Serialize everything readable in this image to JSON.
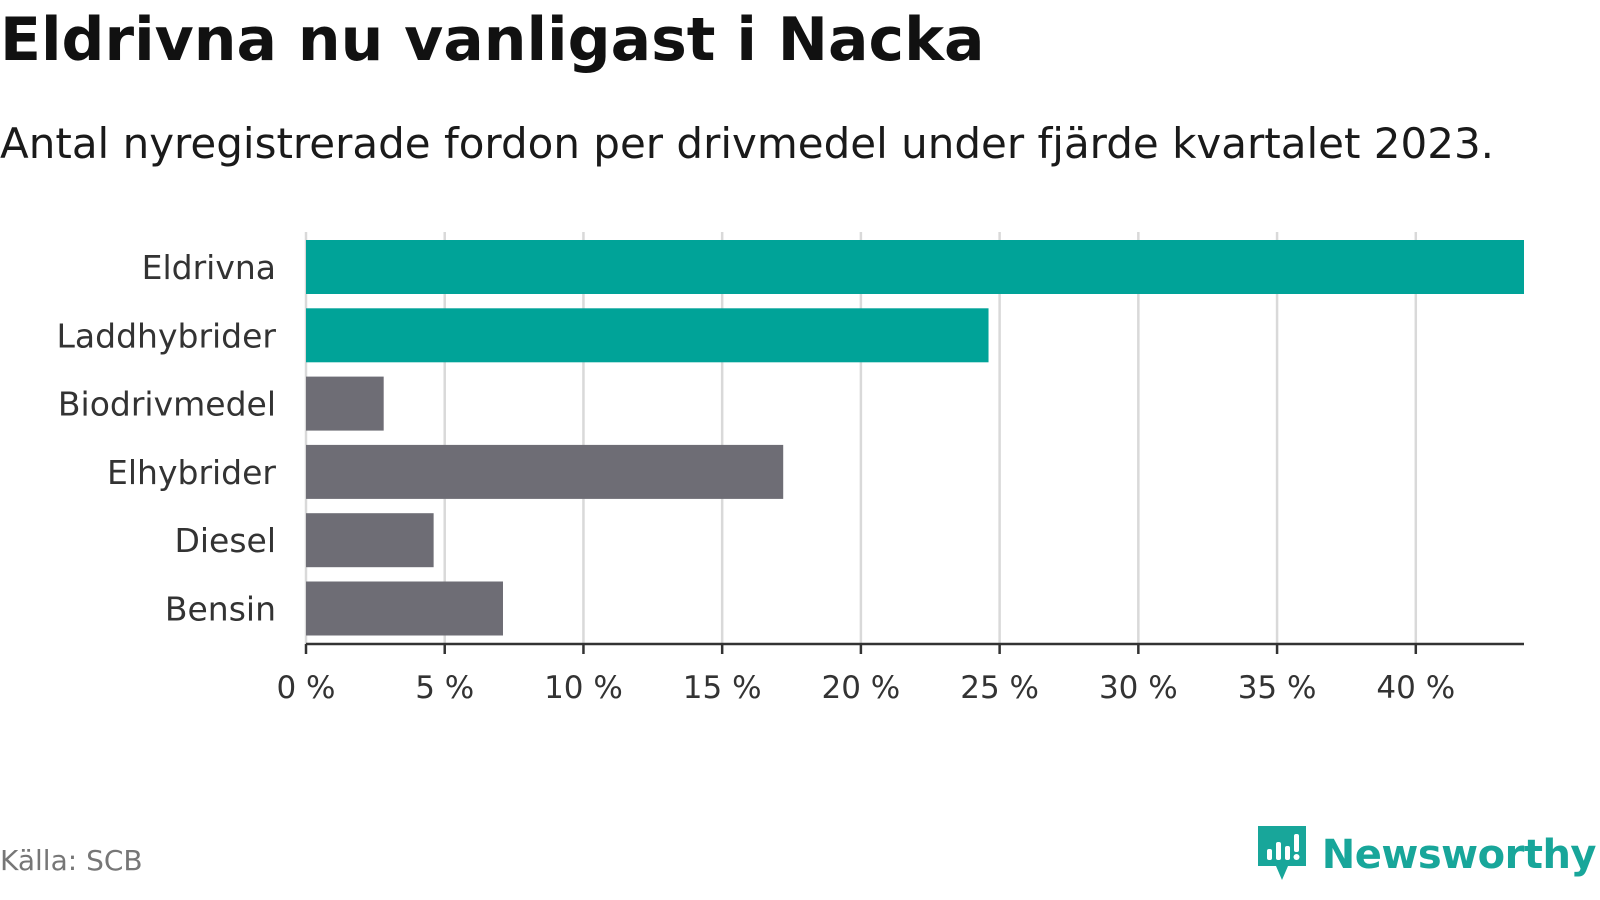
{
  "title": "Eldrivna nu vanligast i Nacka",
  "subtitle": "Antal nyregistrerade fordon per drivmedel under fjärde kvartalet 2023.",
  "source": "Källa: SCB",
  "brand": {
    "name": "Newsworthy",
    "icon": "newsworthy-logo-icon",
    "color": "#18a69a"
  },
  "colors": {
    "highlight": "#00a398",
    "default": "#6e6d75",
    "grid": "#d9d9d9",
    "axis": "#333333"
  },
  "chart_data": {
    "type": "bar",
    "orientation": "horizontal",
    "categories": [
      "Eldrivna",
      "Laddhybrider",
      "Biodrivmedel",
      "Elhybrider",
      "Diesel",
      "Bensin"
    ],
    "values": [
      43.9,
      24.6,
      2.8,
      17.2,
      4.6,
      7.1
    ],
    "highlighted": [
      true,
      true,
      false,
      false,
      false,
      false
    ],
    "x_ticks": [
      0,
      5,
      10,
      15,
      20,
      25,
      30,
      35,
      40
    ],
    "x_tick_labels": [
      "0 %",
      "5 %",
      "10 %",
      "15 %",
      "20 %",
      "25 %",
      "30 %",
      "35 %",
      "40 %"
    ],
    "xlim": [
      0,
      43.9
    ],
    "xlabel": "",
    "ylabel": "",
    "grid": "vertical",
    "legend": "none"
  }
}
